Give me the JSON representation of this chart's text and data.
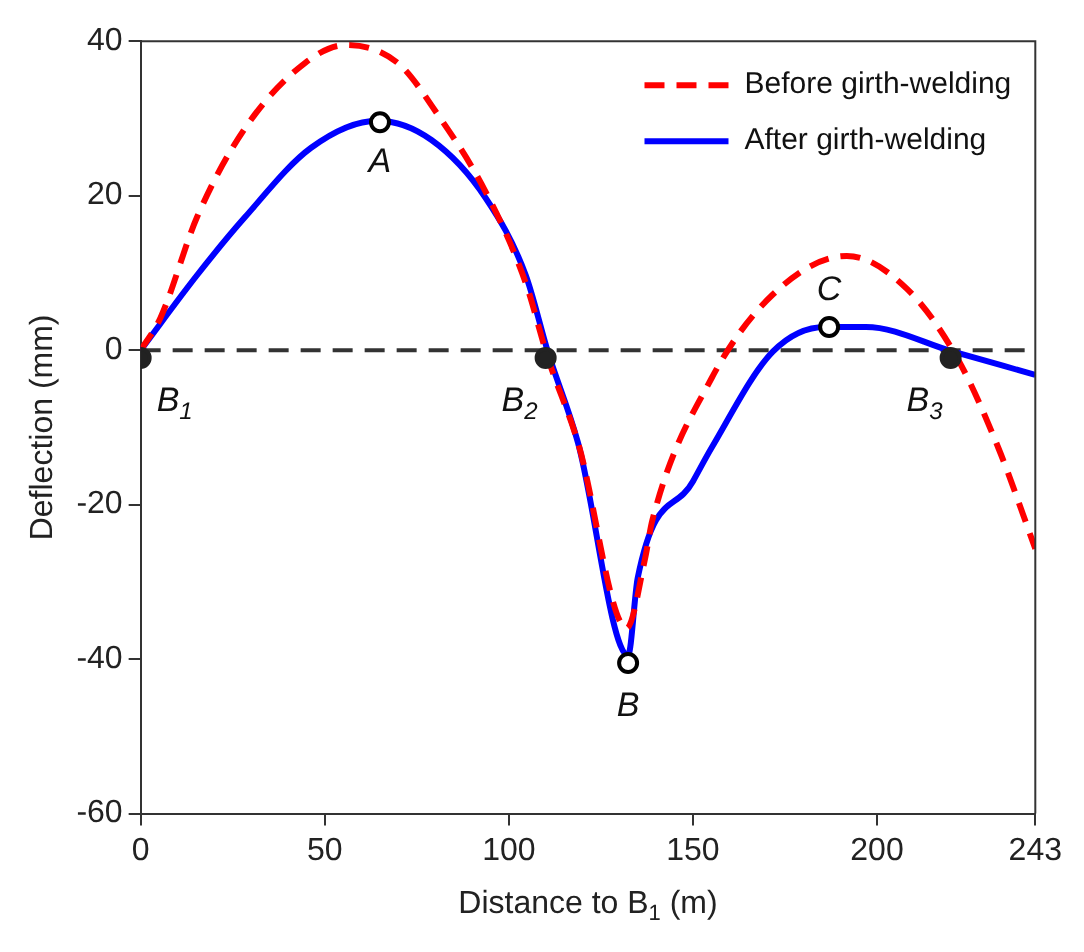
{
  "chart_data": {
    "type": "line",
    "xlabel": "Distance to B$_{1}$ (m)",
    "ylabel": "Deflection (mm)",
    "xlim": [
      0,
      243
    ],
    "xticks": [
      0,
      50,
      100,
      150,
      200,
      243
    ],
    "ylim": [
      -60,
      40
    ],
    "yticks": [
      -60,
      -40,
      -20,
      0,
      20,
      40
    ],
    "grid": false,
    "legend": "top right",
    "line_style": "solid",
    "marker": "none",
    "series": [
      {
        "name": "Before girth-welding",
        "color": "#ff0000",
        "line_style": "dashed",
        "x": [
          0,
          5.4,
          15.3,
          28.3,
          44.7,
          55.6,
          69.8,
          80.7,
          93.7,
          104.6,
          110.6,
          118.8,
          132,
          137,
          139,
          155,
          171.7,
          191.8,
          208,
          222,
          233,
          243
        ],
        "values": [
          0,
          4.2,
          17.2,
          28.7,
          37.2,
          39.5,
          37.2,
          30.5,
          20.5,
          8.7,
          -1,
          -12,
          -36,
          -27,
          -22,
          -3.7,
          7.2,
          12.2,
          8,
          -1.2,
          -12.7,
          -25.7
        ]
      },
      {
        "name": "After girth-welding",
        "color": "#0000ff",
        "x": [
          0,
          15.3,
          28.3,
          46.3,
          64.3,
          79,
          93.7,
          104.6,
          110.6,
          118.8,
          132.4,
          135,
          150,
          155,
          171.7,
          186,
          197,
          220.7,
          243
        ],
        "values": [
          0,
          9.7,
          17.2,
          26.2,
          29.7,
          27.2,
          19.7,
          9.7,
          -0.2,
          -12,
          -39.5,
          -29.5,
          -17,
          -12.7,
          -0.2,
          3,
          3,
          -0.2,
          -3.2
        ]
      },
      {
        "type": "scatter",
        "color": "#222222",
        "marker": "circle",
        "x": [
          0,
          110,
          220
        ],
        "values": [
          -1,
          -1,
          -1
        ]
      },
      {
        "type": "scatter",
        "color": "#000000",
        "marker": "circle",
        "x": [
          65,
          132.4,
          187
        ],
        "values": [
          29.5,
          -40.5,
          3
        ]
      }
    ],
    "ref_lines": [
      {
        "axis": "y",
        "value": 0,
        "color": "#333333",
        "line_style": "dashed"
      }
    ],
    "annotations": [
      {
        "text": "B$_{1}$",
        "x": 0,
        "y": -1
      },
      {
        "text": "A",
        "x": 65,
        "y": 29.5
      },
      {
        "text": "B$_{2}$",
        "x": 110,
        "y": -1
      },
      {
        "text": "B",
        "x": 132.4,
        "y": -40.5
      },
      {
        "text": "C",
        "x": 187,
        "y": 3
      },
      {
        "text": "B$_{3}$",
        "x": 220,
        "y": -1
      }
    ]
  }
}
